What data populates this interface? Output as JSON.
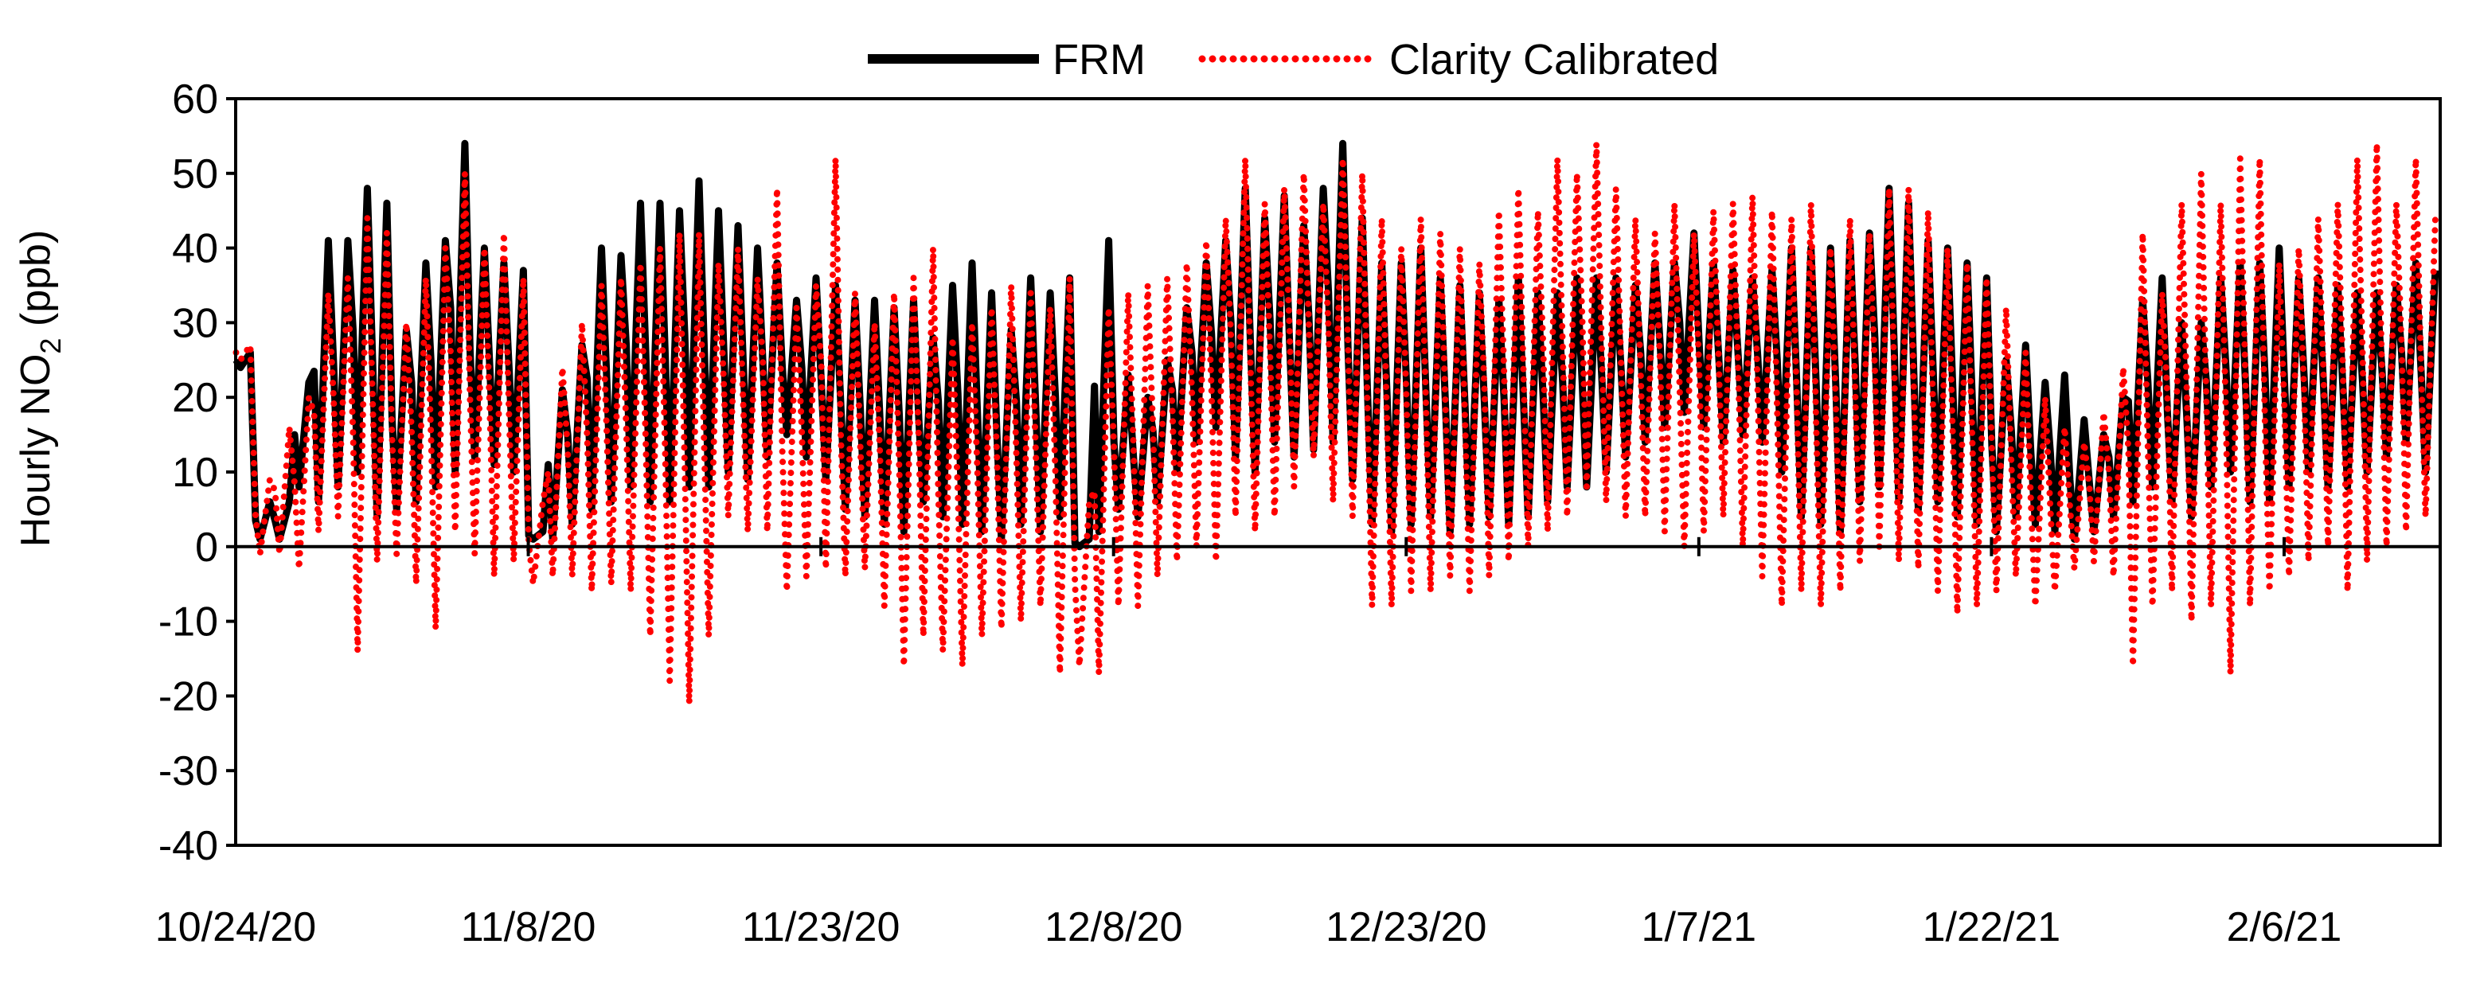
{
  "chart_data": {
    "type": "line",
    "title": "",
    "xlabel": "",
    "ylabel": {
      "prefix": "Hourly NO",
      "subscript": "2",
      "suffix": " (ppb)"
    },
    "x_start": "10/24/20",
    "x_end": "2/13/21",
    "x_tick_labels": [
      "10/24/20",
      "11/8/20",
      "11/23/20",
      "12/8/20",
      "12/23/20",
      "1/7/21",
      "1/22/21",
      "2/6/21"
    ],
    "x_tick_dates": [
      "2020-10-24",
      "2020-11-08",
      "2020-11-23",
      "2020-12-08",
      "2020-12-23",
      "2021-01-07",
      "2021-01-22",
      "2021-02-06"
    ],
    "ylim": [
      -40,
      60
    ],
    "y_ticks": [
      60,
      50,
      40,
      30,
      20,
      10,
      0,
      -10,
      -20,
      -30,
      -40
    ],
    "grid": false,
    "legend_position": "top-center",
    "series": [
      {
        "name": "FRM",
        "color": "#000000",
        "style": "solid",
        "x": [
          "2020-10-24",
          "2020-10-25",
          "2020-10-26",
          "2020-10-27",
          "2020-10-28",
          "2020-10-29",
          "2020-10-30",
          "2020-10-31",
          "2020-11-01",
          "2020-11-02",
          "2020-11-03",
          "2020-11-04",
          "2020-11-05",
          "2020-11-06",
          "2020-11-07",
          "2020-11-08",
          "2020-11-09",
          "2020-11-10",
          "2020-11-11",
          "2020-11-12",
          "2020-11-13",
          "2020-11-14",
          "2020-11-15",
          "2020-11-16",
          "2020-11-17",
          "2020-11-18",
          "2020-11-19",
          "2020-11-20",
          "2020-11-21",
          "2020-11-22",
          "2020-11-23",
          "2020-11-24",
          "2020-11-25",
          "2020-11-26",
          "2020-11-27",
          "2020-11-28",
          "2020-11-29",
          "2020-11-30",
          "2020-12-01",
          "2020-12-02",
          "2020-12-03",
          "2020-12-04",
          "2020-12-05",
          "2020-12-06",
          "2020-12-07",
          "2020-12-08",
          "2020-12-09",
          "2020-12-10",
          "2020-12-11",
          "2020-12-12",
          "2020-12-13",
          "2020-12-14",
          "2020-12-15",
          "2020-12-16",
          "2020-12-17",
          "2020-12-18",
          "2020-12-19",
          "2020-12-20",
          "2020-12-21",
          "2020-12-22",
          "2020-12-23",
          "2020-12-24",
          "2020-12-25",
          "2020-12-26",
          "2020-12-27",
          "2020-12-28",
          "2020-12-29",
          "2020-12-30",
          "2020-12-31",
          "2021-01-01",
          "2021-01-02",
          "2021-01-03",
          "2021-01-04",
          "2021-01-05",
          "2021-01-06",
          "2021-01-07",
          "2021-01-08",
          "2021-01-09",
          "2021-01-10",
          "2021-01-11",
          "2021-01-12",
          "2021-01-13",
          "2021-01-14",
          "2021-01-15",
          "2021-01-16",
          "2021-01-17",
          "2021-01-18",
          "2021-01-19",
          "2021-01-20",
          "2021-01-21",
          "2021-01-22",
          "2021-01-23",
          "2021-01-24",
          "2021-01-25",
          "2021-01-26",
          "2021-01-27",
          "2021-01-28",
          "2021-01-29",
          "2021-01-30",
          "2021-01-31",
          "2021-02-01",
          "2021-02-02",
          "2021-02-03",
          "2021-02-04",
          "2021-02-05",
          "2021-02-06",
          "2021-02-07",
          "2021-02-08",
          "2021-02-09",
          "2021-02-10",
          "2021-02-11",
          "2021-02-12",
          "2021-02-13"
        ],
        "max": [
          26,
          6,
          6,
          22,
          41,
          41,
          48,
          46,
          29,
          38,
          41,
          54,
          40,
          38,
          37,
          2,
          21,
          27,
          40,
          39,
          46,
          46,
          45,
          49,
          45,
          43,
          40,
          38,
          33,
          36,
          35,
          33,
          33,
          32,
          33,
          28,
          35,
          38,
          34,
          29,
          36,
          34,
          36,
          1,
          41,
          23,
          20,
          25,
          32,
          38,
          41,
          48,
          44,
          47,
          43,
          48,
          54,
          44,
          38,
          38,
          40,
          36,
          35,
          34,
          33,
          36,
          34,
          34,
          36,
          36,
          36,
          35,
          38,
          38,
          42,
          38,
          37,
          36,
          37,
          40,
          40,
          40,
          41,
          42,
          48,
          46,
          41,
          40,
          38,
          36,
          25,
          27,
          22,
          23,
          17,
          15,
          20,
          33,
          36,
          30,
          30,
          36,
          38,
          38,
          40,
          36,
          36,
          35,
          34,
          34,
          35,
          38,
          37
        ],
        "min": [
          24,
          1,
          1,
          8,
          6,
          8,
          10,
          4,
          5,
          6,
          8,
          10,
          12,
          11,
          10,
          1,
          1,
          3,
          5,
          6,
          8,
          6,
          6,
          8,
          8,
          10,
          9,
          12,
          15,
          12,
          9,
          5,
          4,
          3,
          2,
          6,
          4,
          3,
          2,
          1,
          3,
          2,
          4,
          0,
          2,
          5,
          4,
          6,
          10,
          14,
          16,
          12,
          10,
          14,
          12,
          13,
          14,
          9,
          3,
          2,
          3,
          4,
          2,
          3,
          4,
          3,
          4,
          6,
          8,
          8,
          10,
          12,
          14,
          16,
          18,
          16,
          14,
          15,
          14,
          10,
          4,
          3,
          2,
          6,
          8,
          6,
          5,
          6,
          4,
          3,
          2,
          4,
          3,
          2,
          1,
          2,
          4,
          6,
          8,
          6,
          4,
          8,
          10,
          6,
          6,
          8,
          10,
          8,
          8,
          10,
          12,
          14,
          10
        ]
      },
      {
        "name": "Clarity Calibrated",
        "color": "#ff0000",
        "style": "dotted",
        "x": [
          "2020-10-24",
          "2020-10-25",
          "2020-10-26",
          "2020-10-27",
          "2020-10-28",
          "2020-10-29",
          "2020-10-30",
          "2020-10-31",
          "2020-11-01",
          "2020-11-02",
          "2020-11-03",
          "2020-11-04",
          "2020-11-05",
          "2020-11-06",
          "2020-11-07",
          "2020-11-08",
          "2020-11-09",
          "2020-11-10",
          "2020-11-11",
          "2020-11-12",
          "2020-11-13",
          "2020-11-14",
          "2020-11-15",
          "2020-11-16",
          "2020-11-17",
          "2020-11-18",
          "2020-11-19",
          "2020-11-20",
          "2020-11-21",
          "2020-11-22",
          "2020-11-23",
          "2020-11-24",
          "2020-11-25",
          "2020-11-26",
          "2020-11-27",
          "2020-11-28",
          "2020-11-29",
          "2020-11-30",
          "2020-12-01",
          "2020-12-02",
          "2020-12-03",
          "2020-12-04",
          "2020-12-05",
          "2020-12-06",
          "2020-12-07",
          "2020-12-08",
          "2020-12-09",
          "2020-12-10",
          "2020-12-11",
          "2020-12-12",
          "2020-12-13",
          "2020-12-14",
          "2020-12-15",
          "2020-12-16",
          "2020-12-17",
          "2020-12-18",
          "2020-12-19",
          "2020-12-20",
          "2020-12-21",
          "2020-12-22",
          "2020-12-23",
          "2020-12-24",
          "2020-12-25",
          "2020-12-26",
          "2020-12-27",
          "2020-12-28",
          "2020-12-29",
          "2020-12-30",
          "2020-12-31",
          "2021-01-01",
          "2021-01-02",
          "2021-01-03",
          "2021-01-04",
          "2021-01-05",
          "2021-01-06",
          "2021-01-07",
          "2021-01-08",
          "2021-01-09",
          "2021-01-10",
          "2021-01-11",
          "2021-01-12",
          "2021-01-13",
          "2021-01-14",
          "2021-01-15",
          "2021-01-16",
          "2021-01-17",
          "2021-01-18",
          "2021-01-19",
          "2021-01-20",
          "2021-01-21",
          "2021-01-22",
          "2021-01-23",
          "2021-01-24",
          "2021-01-25",
          "2021-01-26",
          "2021-01-27",
          "2021-01-28",
          "2021-01-29",
          "2021-01-30",
          "2021-01-31",
          "2021-02-01",
          "2021-02-02",
          "2021-02-03",
          "2021-02-04",
          "2021-02-05",
          "2021-02-06",
          "2021-02-07",
          "2021-02-08",
          "2021-02-09",
          "2021-02-10",
          "2021-02-11",
          "2021-02-12",
          "2021-02-13"
        ],
        "max": [
          27,
          9,
          16,
          20,
          34,
          36,
          44,
          42,
          30,
          36,
          40,
          50,
          40,
          42,
          36,
          6,
          24,
          30,
          35,
          36,
          38,
          40,
          42,
          42,
          38,
          40,
          36,
          48,
          32,
          35,
          52,
          34,
          30,
          34,
          36,
          40,
          28,
          30,
          32,
          35,
          34,
          32,
          36,
          6,
          32,
          34,
          35,
          36,
          38,
          41,
          44,
          52,
          46,
          48,
          50,
          46,
          52,
          50,
          44,
          40,
          44,
          42,
          40,
          38,
          45,
          48,
          45,
          52,
          50,
          54,
          48,
          44,
          42,
          46,
          42,
          45,
          46,
          47,
          45,
          44,
          46,
          40,
          44,
          42,
          48,
          48,
          45,
          40,
          38,
          36,
          32,
          26,
          20,
          16,
          14,
          18,
          24,
          42,
          34,
          46,
          50,
          46,
          52,
          52,
          38,
          40,
          44,
          46,
          52,
          54,
          46,
          52,
          44
        ],
        "min": [
          25,
          -1,
          -1,
          -3,
          2,
          4,
          -14,
          -2,
          -1,
          -5,
          -11,
          2,
          -1,
          -4,
          -2,
          -5,
          -4,
          -4,
          -6,
          -5,
          -6,
          -12,
          -18,
          -21,
          -12,
          4,
          2,
          2,
          -6,
          -4,
          -3,
          -4,
          -3,
          -8,
          -16,
          -12,
          -14,
          -16,
          -12,
          -11,
          -10,
          -8,
          -17,
          -16,
          -17,
          -8,
          -8,
          -4,
          -2,
          0,
          -2,
          4,
          2,
          4,
          8,
          12,
          6,
          4,
          -8,
          -8,
          -6,
          -6,
          -4,
          -6,
          -4,
          -2,
          0,
          2,
          4,
          8,
          6,
          4,
          4,
          2,
          0,
          2,
          4,
          0,
          -4,
          -8,
          -6,
          -8,
          -6,
          -2,
          0,
          -2,
          -3,
          -6,
          -9,
          -8,
          -6,
          -4,
          -8,
          -6,
          -3,
          -2,
          -4,
          -16,
          -8,
          -6,
          -10,
          -8,
          -17,
          -8,
          -6,
          -4,
          -2,
          0,
          -6,
          -2,
          0,
          2,
          4
        ]
      }
    ]
  }
}
